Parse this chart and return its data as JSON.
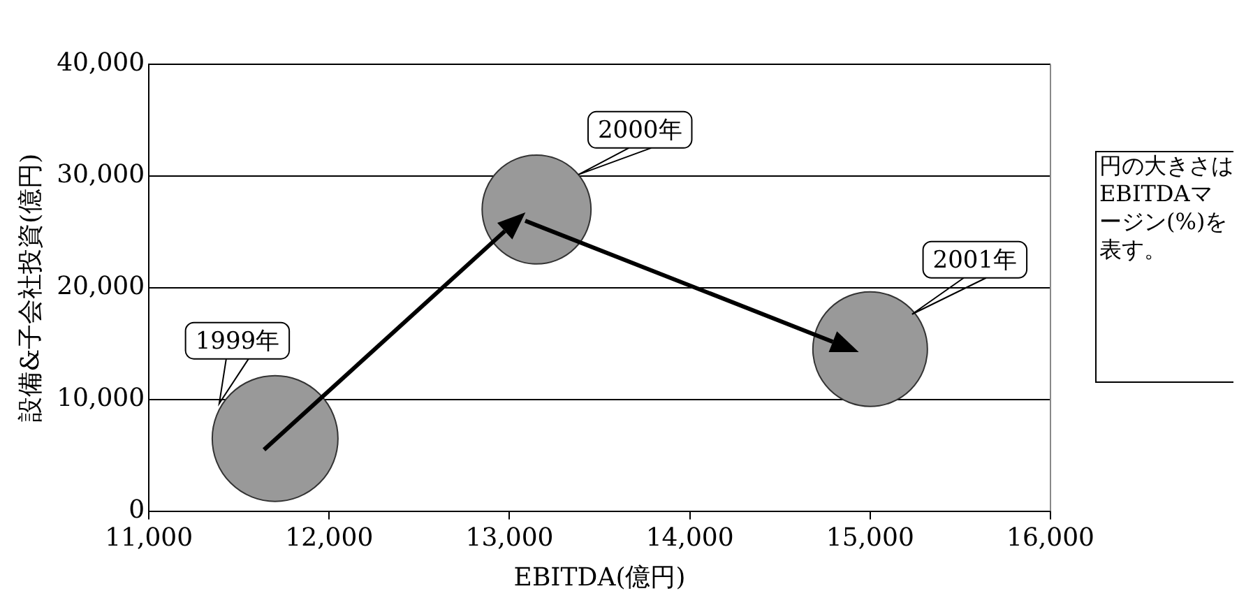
{
  "chart_data": {
    "type": "bubble",
    "xlabel": "EBITDA(億円)",
    "ylabel": "設備&子会社投資(億円)",
    "x": [
      11700,
      13150,
      15000
    ],
    "values": [
      6500,
      27000,
      14500
    ],
    "sizes": [
      1,
      0.75,
      0.83
    ],
    "color": "#999999",
    "xlim": [
      11000,
      16000
    ],
    "xticks": [
      {
        "value": 11000,
        "label": "11,000"
      },
      {
        "value": 12000,
        "label": "12,000"
      },
      {
        "value": 13000,
        "label": "13,000"
      },
      {
        "value": 14000,
        "label": "14,000"
      },
      {
        "value": 15000,
        "label": "15,000"
      },
      {
        "value": 16000,
        "label": "16,000"
      }
    ],
    "ylim": [
      0,
      40000
    ],
    "yticks": [
      0,
      {
        "value": 10000,
        "label": "10,000"
      },
      {
        "value": 20000,
        "label": "20,000"
      },
      {
        "value": 30000,
        "label": "30,000"
      },
      {
        "value": 40000,
        "label": "40,000"
      }
    ],
    "grid": "y",
    "legend": false,
    "marker": "circle",
    "annotations": [
      "1999年",
      "2000年",
      "2001年",
      "円の大きさはEBITDAマージン(%)を表す。"
    ]
  }
}
